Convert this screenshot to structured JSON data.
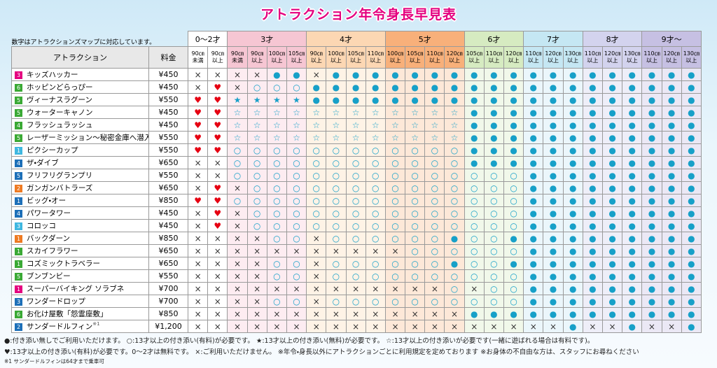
{
  "title": "アトラクション年令身長早見表",
  "note": "数字はアトラクションズマップに対応しています。",
  "symbol_colors": {
    "●": "#17a0c8",
    "○": "#17a0c8",
    "★": "#17a0c8",
    "☆": "#17a0c8",
    "×": "#333333",
    "♥": "#e60012"
  },
  "table": {
    "headers": [
      "アトラクション",
      "料金"
    ],
    "groups": [
      {
        "label": "0〜2才",
        "color": "#ffffff",
        "tint": "#ffffff",
        "columns": [
          {
            "height": "90㎝",
            "cond": "未満"
          },
          {
            "height": "90㎝",
            "cond": "以上"
          }
        ]
      },
      {
        "label": "3才",
        "color": "#f6c6d3",
        "tint": "#fdecf1",
        "columns": [
          {
            "height": "90㎝",
            "cond": "未満"
          },
          {
            "height": "90㎝",
            "cond": "以上"
          },
          {
            "height": "100㎝",
            "cond": "以上"
          },
          {
            "height": "105㎝",
            "cond": "以上"
          }
        ]
      },
      {
        "label": "4才",
        "color": "#fcd7b3",
        "tint": "#fef3e6",
        "columns": [
          {
            "height": "90㎝",
            "cond": "以上"
          },
          {
            "height": "100㎝",
            "cond": "以上"
          },
          {
            "height": "105㎝",
            "cond": "以上"
          },
          {
            "height": "110㎝",
            "cond": "以上"
          }
        ]
      },
      {
        "label": "5才",
        "color": "#f8b07a",
        "tint": "#fde8d8",
        "columns": [
          {
            "height": "100㎝",
            "cond": "以上"
          },
          {
            "height": "105㎝",
            "cond": "以上"
          },
          {
            "height": "110㎝",
            "cond": "以上"
          },
          {
            "height": "120㎝",
            "cond": "以上"
          }
        ]
      },
      {
        "label": "6才",
        "color": "#d6ebc1",
        "tint": "#f1f8ea",
        "columns": [
          {
            "height": "105㎝",
            "cond": "以上"
          },
          {
            "height": "110㎝",
            "cond": "以上"
          },
          {
            "height": "120㎝",
            "cond": "以上"
          }
        ]
      },
      {
        "label": "7才",
        "color": "#c5e7f3",
        "tint": "#ebf6fb",
        "columns": [
          {
            "height": "110㎝",
            "cond": "以上"
          },
          {
            "height": "120㎝",
            "cond": "以上"
          },
          {
            "height": "130㎝",
            "cond": "以上"
          }
        ]
      },
      {
        "label": "8才",
        "color": "#d3d3ee",
        "tint": "#eeeef8",
        "columns": [
          {
            "height": "110㎝",
            "cond": "以上"
          },
          {
            "height": "120㎝",
            "cond": "以上"
          },
          {
            "height": "130㎝",
            "cond": "以上"
          }
        ]
      },
      {
        "label": "9才〜",
        "color": "#c6c0e3",
        "tint": "#ebe8f5",
        "columns": [
          {
            "height": "110㎝",
            "cond": "以上"
          },
          {
            "height": "120㎝",
            "cond": "以上"
          },
          {
            "height": "130㎝",
            "cond": "以上"
          }
        ]
      }
    ],
    "rows": [
      {
        "no": "3",
        "badge": "#e4007f",
        "name": "キッズハッカー",
        "price": "¥450",
        "cells": [
          "×",
          "×",
          "×",
          "×",
          "●",
          "●",
          "×",
          "●",
          "●",
          "●",
          "●",
          "●",
          "●",
          "●",
          "●",
          "●",
          "●",
          "●",
          "●",
          "●",
          "●",
          "●",
          "●",
          "●",
          "●",
          "●"
        ]
      },
      {
        "no": "6",
        "badge": "#3aa935",
        "name": "ホッピンどらっぴー",
        "price": "¥450",
        "cells": [
          "×",
          "♥",
          "×",
          "○",
          "○",
          "○",
          "●",
          "●",
          "●",
          "●",
          "●",
          "●",
          "●",
          "●",
          "●",
          "●",
          "●",
          "●",
          "●",
          "●",
          "●",
          "●",
          "●",
          "●",
          "●",
          "●"
        ]
      },
      {
        "no": "5",
        "badge": "#3aa935",
        "name": "ヴィーナスラグーン",
        "price": "¥550",
        "cells": [
          "♥",
          "♥",
          "★",
          "★",
          "★",
          "★",
          "●",
          "●",
          "●",
          "●",
          "●",
          "●",
          "●",
          "●",
          "●",
          "●",
          "●",
          "●",
          "●",
          "●",
          "●",
          "●",
          "●",
          "●",
          "●",
          "●"
        ]
      },
      {
        "no": "5",
        "badge": "#3aa935",
        "name": "ウォーターキャノン",
        "price": "¥450",
        "cells": [
          "♥",
          "♥",
          "☆",
          "☆",
          "☆",
          "☆",
          "☆",
          "☆",
          "☆",
          "☆",
          "☆",
          "☆",
          "☆",
          "☆",
          "●",
          "●",
          "●",
          "●",
          "●",
          "●",
          "●",
          "●",
          "●",
          "●",
          "●",
          "●"
        ]
      },
      {
        "no": "4",
        "badge": "#3aa935",
        "name": "フラッシュラッシュ",
        "price": "¥450",
        "cells": [
          "♥",
          "♥",
          "☆",
          "☆",
          "☆",
          "☆",
          "☆",
          "☆",
          "☆",
          "☆",
          "☆",
          "☆",
          "☆",
          "☆",
          "●",
          "●",
          "●",
          "●",
          "●",
          "●",
          "●",
          "●",
          "●",
          "●",
          "●",
          "●"
        ]
      },
      {
        "no": "5",
        "badge": "#3aa935",
        "name": "レーザーミッション〜秘密金庫へ潜入せよ!〜",
        "price": "¥550",
        "cells": [
          "♥",
          "♥",
          "☆",
          "☆",
          "☆",
          "☆",
          "☆",
          "☆",
          "☆",
          "☆",
          "☆",
          "☆",
          "☆",
          "☆",
          "●",
          "●",
          "●",
          "●",
          "●",
          "●",
          "●",
          "●",
          "●",
          "●",
          "●",
          "●"
        ]
      },
      {
        "no": "1",
        "badge": "#3fb7e0",
        "name": "ピクシーカップ",
        "price": "¥550",
        "cells": [
          "♥",
          "♥",
          "○",
          "○",
          "○",
          "○",
          "○",
          "○",
          "○",
          "○",
          "○",
          "○",
          "○",
          "○",
          "●",
          "●",
          "●",
          "●",
          "●",
          "●",
          "●",
          "●",
          "●",
          "●",
          "●",
          "●"
        ]
      },
      {
        "no": "4",
        "badge": "#1d6fb8",
        "name": "ザ・ダイブ",
        "price": "¥650",
        "cells": [
          "×",
          "×",
          "○",
          "○",
          "○",
          "○",
          "○",
          "○",
          "○",
          "○",
          "○",
          "○",
          "○",
          "○",
          "●",
          "●",
          "●",
          "●",
          "●",
          "●",
          "●",
          "●",
          "●",
          "●",
          "●",
          "●"
        ]
      },
      {
        "no": "5",
        "badge": "#1d6fb8",
        "name": "フリフリグランプリ",
        "price": "¥550",
        "cells": [
          "×",
          "×",
          "○",
          "○",
          "○",
          "○",
          "○",
          "○",
          "○",
          "○",
          "○",
          "○",
          "○",
          "○",
          "○",
          "○",
          "○",
          "●",
          "●",
          "●",
          "●",
          "●",
          "●",
          "●",
          "●",
          "●"
        ]
      },
      {
        "no": "2",
        "badge": "#ee7a22",
        "name": "ガンガンバトラーズ",
        "price": "¥650",
        "cells": [
          "×",
          "♥",
          "×",
          "○",
          "○",
          "○",
          "○",
          "○",
          "○",
          "○",
          "○",
          "○",
          "○",
          "○",
          "○",
          "○",
          "○",
          "●",
          "●",
          "●",
          "●",
          "●",
          "●",
          "●",
          "●",
          "●"
        ]
      },
      {
        "no": "1",
        "badge": "#1d6fb8",
        "name": "ビッグ・オー",
        "price": "¥850",
        "cells": [
          "♥",
          "♥",
          "○",
          "○",
          "○",
          "○",
          "○",
          "○",
          "○",
          "○",
          "○",
          "○",
          "○",
          "○",
          "○",
          "○",
          "○",
          "●",
          "●",
          "●",
          "●",
          "●",
          "●",
          "●",
          "●",
          "●"
        ]
      },
      {
        "no": "4",
        "badge": "#1d6fb8",
        "name": "パワータワー",
        "price": "¥450",
        "cells": [
          "×",
          "♥",
          "×",
          "○",
          "○",
          "○",
          "○",
          "○",
          "○",
          "○",
          "○",
          "○",
          "○",
          "○",
          "○",
          "○",
          "○",
          "●",
          "●",
          "●",
          "●",
          "●",
          "●",
          "●",
          "●",
          "●"
        ]
      },
      {
        "no": "3",
        "badge": "#3fb7e0",
        "name": "コロッコ",
        "price": "¥450",
        "cells": [
          "×",
          "♥",
          "×",
          "○",
          "○",
          "○",
          "○",
          "○",
          "○",
          "○",
          "○",
          "○",
          "○",
          "○",
          "○",
          "○",
          "○",
          "●",
          "●",
          "●",
          "●",
          "●",
          "●",
          "●",
          "●",
          "●"
        ]
      },
      {
        "no": "1",
        "badge": "#ee7a22",
        "name": "バックダーン",
        "price": "¥850",
        "cells": [
          "×",
          "×",
          "×",
          "×",
          "○",
          "○",
          "×",
          "○",
          "○",
          "○",
          "○",
          "○",
          "○",
          "●",
          "○",
          "○",
          "●",
          "●",
          "●",
          "●",
          "●",
          "●",
          "●",
          "●",
          "●",
          "●"
        ]
      },
      {
        "no": "1",
        "badge": "#3aa935",
        "name": "スカイフラワー",
        "price": "¥650",
        "cells": [
          "×",
          "×",
          "×",
          "×",
          "×",
          "×",
          "×",
          "×",
          "×",
          "×",
          "×",
          "○",
          "○",
          "○",
          "○",
          "○",
          "○",
          "●",
          "●",
          "●",
          "●",
          "●",
          "●",
          "●",
          "●",
          "●"
        ]
      },
      {
        "no": "1",
        "badge": "#3aa935",
        "name": "コズミックトラベラー",
        "price": "¥650",
        "cells": [
          "×",
          "×",
          "×",
          "×",
          "○",
          "○",
          "×",
          "○",
          "○",
          "○",
          "○",
          "○",
          "○",
          "●",
          "○",
          "○",
          "●",
          "●",
          "●",
          "●",
          "●",
          "●",
          "●",
          "●",
          "●",
          "●"
        ]
      },
      {
        "no": "5",
        "badge": "#3aa935",
        "name": "ブンブンビー",
        "price": "¥550",
        "cells": [
          "×",
          "×",
          "×",
          "×",
          "○",
          "○",
          "×",
          "○",
          "○",
          "○",
          "○",
          "○",
          "○",
          "○",
          "○",
          "○",
          "○",
          "●",
          "●",
          "●",
          "●",
          "●",
          "●",
          "●",
          "●",
          "●"
        ]
      },
      {
        "no": "1",
        "badge": "#e4007f",
        "name": "スーパーバイキング ソラブネ",
        "price": "¥700",
        "cells": [
          "×",
          "×",
          "×",
          "×",
          "×",
          "×",
          "×",
          "×",
          "×",
          "×",
          "×",
          "×",
          "×",
          "○",
          "×",
          "○",
          "○",
          "●",
          "●",
          "●",
          "●",
          "●",
          "●",
          "●",
          "●",
          "●"
        ]
      },
      {
        "no": "3",
        "badge": "#1d6fb8",
        "name": "ワンダードロップ",
        "price": "¥700",
        "cells": [
          "×",
          "×",
          "×",
          "×",
          "○",
          "○",
          "×",
          "○",
          "○",
          "○",
          "○",
          "○",
          "○",
          "○",
          "○",
          "○",
          "○",
          "●",
          "●",
          "●",
          "●",
          "●",
          "●",
          "●",
          "●",
          "●"
        ]
      },
      {
        "no": "6",
        "badge": "#3aa935",
        "name": "お化け屋敷「怨霊座敷」",
        "price": "¥850",
        "cells": [
          "×",
          "×",
          "×",
          "×",
          "×",
          "×",
          "×",
          "×",
          "×",
          "×",
          "×",
          "×",
          "×",
          "×",
          "●",
          "●",
          "●",
          "●",
          "●",
          "●",
          "●",
          "●",
          "●",
          "●",
          "●",
          "●"
        ]
      },
      {
        "no": "2",
        "badge": "#1d6fb8",
        "name": "サンダードルフィン",
        "mark": "※1",
        "price": "¥1,200",
        "cells": [
          "×",
          "×",
          "×",
          "×",
          "×",
          "×",
          "×",
          "×",
          "×",
          "×",
          "×",
          "×",
          "×",
          "×",
          "×",
          "×",
          "×",
          "×",
          "×",
          "●",
          "×",
          "×",
          "●",
          "×",
          "×",
          "●"
        ]
      }
    ]
  },
  "legend": [
    "●:付き添い無しでご利用いただけます。 ○:13才以上の付き添い(有料)が必要です。 ★:13才以上の付き添い(無料)が必要です。 ☆:13才以上の付き添いが必要です(一緒に遊ばれる場合は有料です)。",
    "♥:13才以上の付き添い(有料)が必要です。0〜2才は無料です。 ×:ご利用いただけません。 ※年令・身長以外にアトラクションごとに利用規定を定めております ※お身体の不自由な方は、スタッフにお尋ねください",
    "※1 サンダードルフィンは64才まで乗車可"
  ]
}
